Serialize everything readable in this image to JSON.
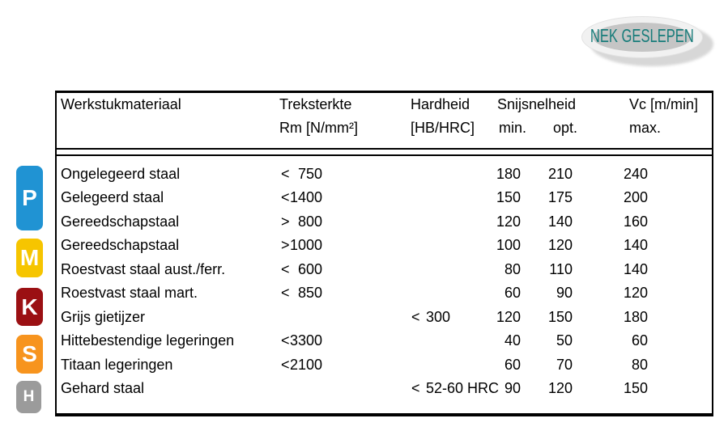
{
  "logo": {
    "text": "NEK GESLEPEN",
    "text_color": "#177c7a",
    "ring_color": "#f1f1f1",
    "inner_color": "#c5c5c5"
  },
  "badges": [
    {
      "label": "P",
      "color": "#2093d3"
    },
    {
      "label": "M",
      "color": "#f6c500"
    },
    {
      "label": "K",
      "color": "#9b1013"
    },
    {
      "label": "S",
      "color": "#f7941e"
    },
    {
      "label": "H",
      "color": "#9b9b9b"
    }
  ],
  "table": {
    "headers": {
      "material": "Werkstukmateriaal",
      "tensile_line1": "Treksterkte",
      "tensile_line2": "Rm [N/mm²]",
      "hardness_line1": "Hardheid",
      "hardness_line2": "[HB/HRC]",
      "cutting_speed": "Snijsnelheid",
      "min": "min.",
      "opt": "opt.",
      "vc": "Vc [m/min]",
      "max": "max."
    },
    "rows": [
      {
        "material": "Ongelegeerd staal",
        "ts_sign": "<",
        "ts_value": "750",
        "hd_sign": "",
        "hd_value": "",
        "min": "180",
        "opt": "210",
        "max": "240"
      },
      {
        "material": "Gelegeerd staal",
        "ts_sign": "<",
        "ts_value": "1400",
        "hd_sign": "",
        "hd_value": "",
        "min": "150",
        "opt": "175",
        "max": "200"
      },
      {
        "material": "Gereedschapstaal",
        "ts_sign": ">",
        "ts_value": "800",
        "hd_sign": "",
        "hd_value": "",
        "min": "120",
        "opt": "140",
        "max": "160"
      },
      {
        "material": "Gereedschapstaal",
        "ts_sign": ">",
        "ts_value": "1000",
        "hd_sign": "",
        "hd_value": "",
        "min": "100",
        "opt": "120",
        "max": "140"
      },
      {
        "material": "Roestvast staal aust./ferr.",
        "ts_sign": "<",
        "ts_value": "600",
        "hd_sign": "",
        "hd_value": "",
        "min": "80",
        "opt": "110",
        "max": "140"
      },
      {
        "material": "Roestvast staal mart.",
        "ts_sign": "<",
        "ts_value": "850",
        "hd_sign": "",
        "hd_value": "",
        "min": "60",
        "opt": "90",
        "max": "120"
      },
      {
        "material": "Grijs gietijzer",
        "ts_sign": "",
        "ts_value": "",
        "hd_sign": "<",
        "hd_value": "300",
        "min": "120",
        "opt": "150",
        "max": "180"
      },
      {
        "material": "Hittebestendige legeringen",
        "ts_sign": "<",
        "ts_value": "3300",
        "hd_sign": "",
        "hd_value": "",
        "min": "40",
        "opt": "50",
        "max": "60"
      },
      {
        "material": "Titaan legeringen",
        "ts_sign": "<",
        "ts_value": "2100",
        "hd_sign": "",
        "hd_value": "",
        "min": "60",
        "opt": "70",
        "max": "80"
      },
      {
        "material": "Gehard staal",
        "ts_sign": "",
        "ts_value": "",
        "hd_sign": "<",
        "hd_value": "52-60 HRC",
        "min": "90",
        "opt": "120",
        "max": "150"
      }
    ]
  }
}
